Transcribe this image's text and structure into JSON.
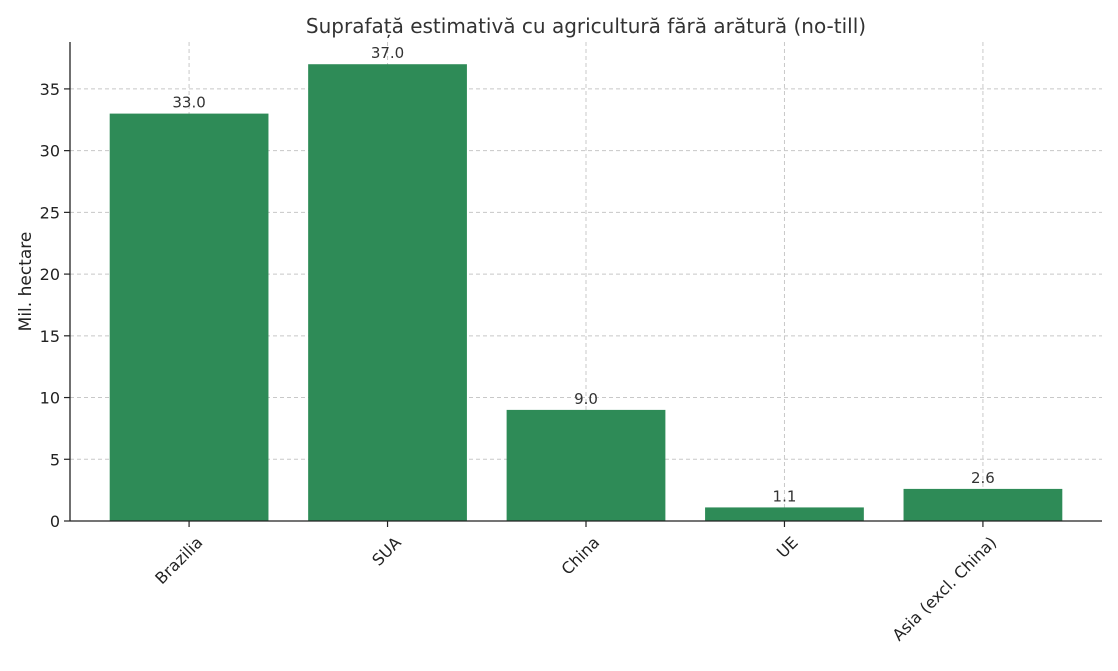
{
  "chart_data": {
    "type": "bar",
    "title": "Suprafață estimativă cu agricultură fără arătură (no-till)",
    "xlabel": "",
    "ylabel": "Mil. hectare",
    "categories": [
      "Brazilia",
      "SUA",
      "China",
      "UE",
      "Asia (excl. China)"
    ],
    "values": [
      33.0,
      37.0,
      9.0,
      1.1,
      2.6
    ],
    "value_labels": [
      "33.0",
      "37.0",
      "9.0",
      "1.1",
      "2.6"
    ],
    "ylim": [
      0,
      38.8
    ],
    "yticks": [
      0,
      5,
      10,
      15,
      20,
      25,
      30,
      35
    ],
    "grid": true,
    "bar_color": "#2e8b57"
  }
}
